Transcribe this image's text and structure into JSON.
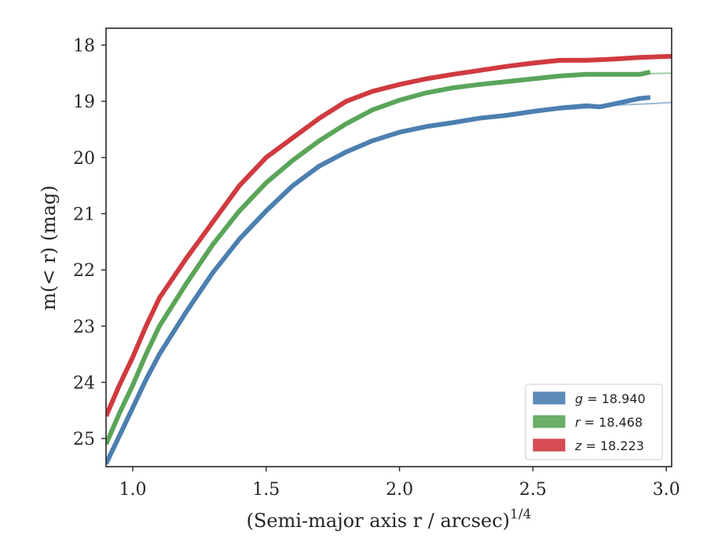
{
  "chart_data": {
    "type": "line",
    "xlabel": "(Semi-major axis r / arcsec)",
    "xlabel_sup": "1/4",
    "ylabel": "m(< r) (mag)",
    "xlim": [
      0.9,
      3.02
    ],
    "ylim": [
      25.5,
      17.7
    ],
    "y_inverted": true,
    "grid": false,
    "legend_placement": "lower-right",
    "x_ticks": [
      1.0,
      1.5,
      2.0,
      2.5,
      3.0
    ],
    "x_tick_labels": [
      "1.0",
      "1.5",
      "2.0",
      "2.5",
      "3.0"
    ],
    "y_ticks": [
      18,
      19,
      20,
      21,
      22,
      23,
      24,
      25
    ],
    "y_tick_labels": [
      "18",
      "19",
      "20",
      "21",
      "22",
      "23",
      "24",
      "25"
    ],
    "series": [
      {
        "name": "g = 18.940",
        "legend_var": "g",
        "legend_value": "= 18.940",
        "color": "#4c7fb0",
        "x": [
          0.9,
          0.95,
          1.0,
          1.05,
          1.1,
          1.2,
          1.3,
          1.4,
          1.5,
          1.6,
          1.7,
          1.8,
          1.9,
          2.0,
          2.1,
          2.2,
          2.3,
          2.4,
          2.5,
          2.6,
          2.7,
          2.75,
          2.8,
          2.9,
          2.94
        ],
        "y": [
          25.45,
          24.95,
          24.45,
          23.95,
          23.5,
          22.75,
          22.05,
          21.45,
          20.95,
          20.5,
          20.15,
          19.9,
          19.7,
          19.55,
          19.45,
          19.38,
          19.3,
          19.25,
          19.18,
          19.12,
          19.08,
          19.1,
          19.05,
          18.95,
          18.93
        ],
        "model": [
          19.55,
          19.45,
          19.38,
          19.3,
          19.24,
          19.19,
          19.15,
          19.12,
          19.1,
          19.07,
          19.05,
          19.04,
          19.02
        ],
        "model_x": [
          2.0,
          2.1,
          2.2,
          2.3,
          2.4,
          2.5,
          2.6,
          2.7,
          2.75,
          2.8,
          2.9,
          2.95,
          3.02
        ]
      },
      {
        "name": "r = 18.468",
        "legend_var": "r",
        "legend_value": "= 18.468",
        "color": "#5aa55a",
        "x": [
          0.9,
          0.95,
          1.0,
          1.05,
          1.1,
          1.2,
          1.3,
          1.4,
          1.5,
          1.6,
          1.7,
          1.8,
          1.9,
          2.0,
          2.1,
          2.2,
          2.3,
          2.4,
          2.5,
          2.6,
          2.7,
          2.8,
          2.9,
          2.94
        ],
        "y": [
          25.1,
          24.55,
          24.05,
          23.5,
          23.0,
          22.25,
          21.55,
          20.95,
          20.45,
          20.05,
          19.7,
          19.4,
          19.15,
          18.98,
          18.85,
          18.76,
          18.7,
          18.65,
          18.6,
          18.55,
          18.52,
          18.52,
          18.52,
          18.48
        ],
        "model": [
          18.98,
          18.85,
          18.76,
          18.7,
          18.65,
          18.6,
          18.56,
          18.54,
          18.52,
          18.51,
          18.5
        ],
        "model_x": [
          2.0,
          2.1,
          2.2,
          2.3,
          2.4,
          2.5,
          2.6,
          2.7,
          2.8,
          2.9,
          3.02
        ]
      },
      {
        "name": "z = 18.223",
        "legend_var": "z",
        "legend_value": "= 18.223",
        "color": "#d03a3f",
        "x": [
          0.9,
          0.95,
          1.0,
          1.05,
          1.1,
          1.2,
          1.3,
          1.4,
          1.5,
          1.6,
          1.7,
          1.8,
          1.9,
          2.0,
          2.1,
          2.2,
          2.3,
          2.4,
          2.5,
          2.6,
          2.7,
          2.8,
          2.9,
          3.02
        ],
        "y": [
          24.6,
          24.05,
          23.55,
          23.0,
          22.5,
          21.8,
          21.15,
          20.5,
          20.0,
          19.65,
          19.3,
          19.0,
          18.82,
          18.7,
          18.6,
          18.52,
          18.45,
          18.38,
          18.32,
          18.27,
          18.27,
          18.25,
          18.22,
          18.2
        ],
        "model": [
          18.7,
          18.6,
          18.52,
          18.46,
          18.4,
          18.35,
          18.3,
          18.27,
          18.25,
          18.22,
          18.2
        ],
        "model_x": [
          2.0,
          2.1,
          2.2,
          2.3,
          2.4,
          2.5,
          2.6,
          2.7,
          2.8,
          2.9,
          3.02
        ]
      }
    ]
  }
}
